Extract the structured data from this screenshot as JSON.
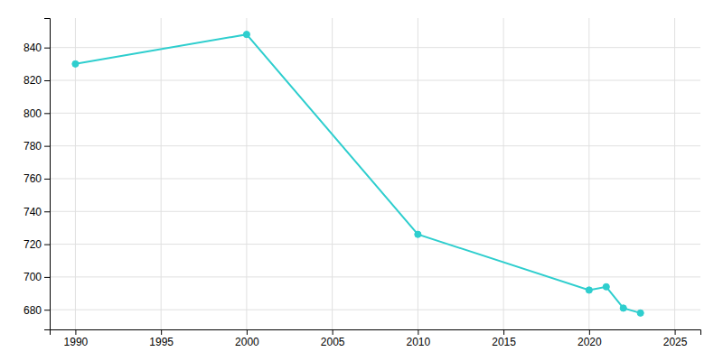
{
  "chart_data": {
    "type": "line",
    "x": [
      1990,
      2000,
      2010,
      2020,
      2021,
      2022,
      2023
    ],
    "values": [
      830,
      848,
      726,
      692,
      694,
      681,
      678
    ],
    "color": "#2ECECE",
    "marker": "circle",
    "xlim": [
      1988.5,
      2026.5
    ],
    "ylim": [
      668,
      858
    ],
    "xticks": [
      1990,
      1995,
      2000,
      2005,
      2010,
      2015,
      2020,
      2025
    ],
    "yticks": [
      680,
      700,
      720,
      740,
      760,
      780,
      800,
      820,
      840
    ],
    "grid": true
  }
}
